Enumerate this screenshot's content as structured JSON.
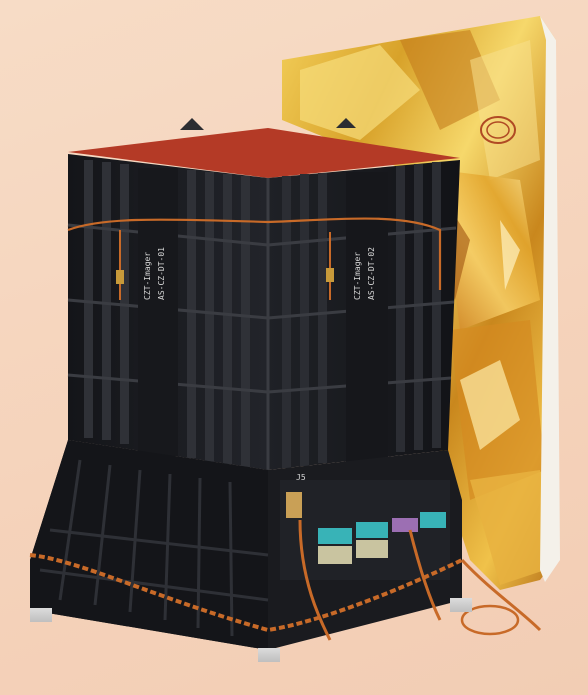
{
  "image": {
    "subject": "satellite-instrument-photo",
    "colors": {
      "background": "#f5d3bb",
      "panel_black": "#1b1c20",
      "rib_black": "#2a2c31",
      "foil_gold": "#e6b43a",
      "foil_orange": "#d98a1c",
      "cable_orange": "#c86a28",
      "connector_teal": "#38b3b7",
      "connector_purple": "#9c6fb3"
    }
  },
  "labels": {
    "left_panel_line1": "CZT-Imager",
    "left_panel_line2": "AS-CZ-DT-01",
    "right_panel_line1": "CZT-Imager",
    "right_panel_line2": "AS-CZ-DT-02",
    "connector_tag": "J5"
  }
}
